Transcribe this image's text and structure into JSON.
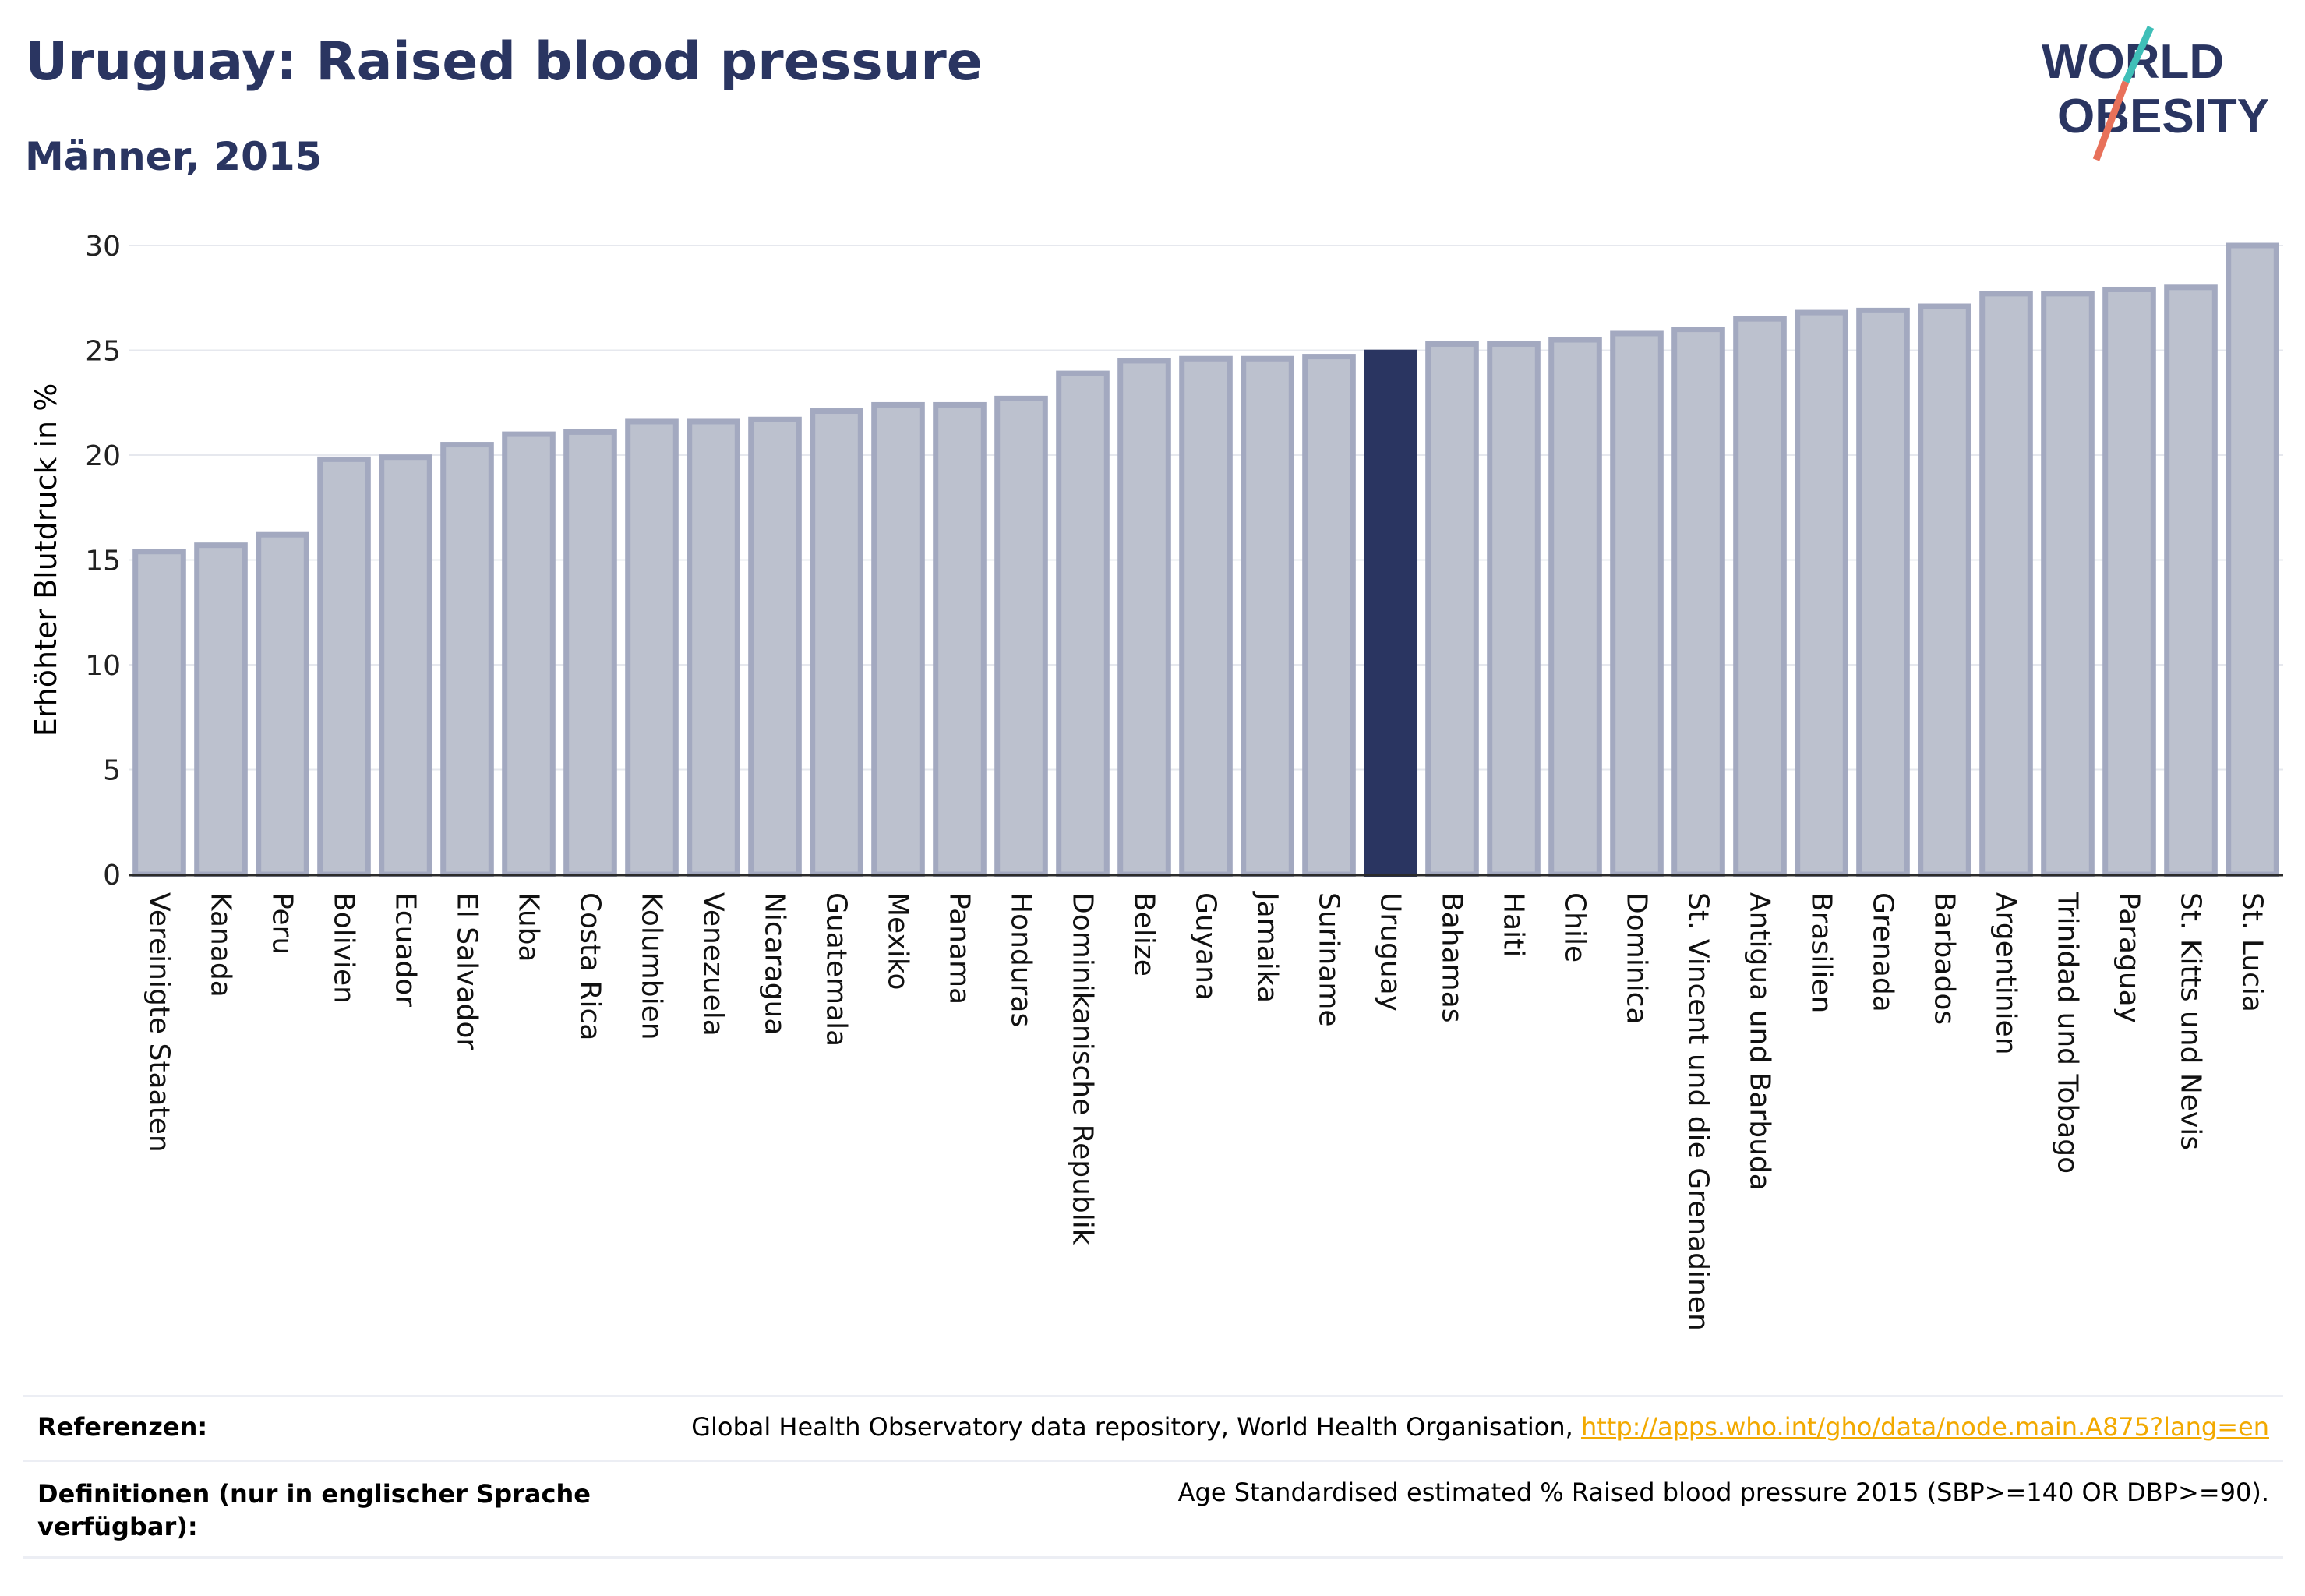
{
  "header": {
    "title": "Uruguay: Raised blood pressure",
    "subtitle": "Männer, 2015",
    "logo": {
      "line1": "WORLD",
      "line2": "OBESITY"
    }
  },
  "chart_data": {
    "type": "bar",
    "ylabel": "Erhöhter Blutdruck in %",
    "ylim": [
      0,
      30
    ],
    "yticks": [
      0,
      5,
      10,
      15,
      20,
      25,
      30
    ],
    "grid": true,
    "highlight": "Uruguay",
    "colors": {
      "bar": "#bcc1ce",
      "bar_border": "#a3a9c0",
      "highlight": "#2a3561"
    },
    "categories": [
      "Vereinigte Staaten",
      "Kanada",
      "Peru",
      "Bolivien",
      "Ecuador",
      "El Salvador",
      "Kuba",
      "Costa Rica",
      "Kolumbien",
      "Venezuela",
      "Nicaragua",
      "Guatemala",
      "Mexiko",
      "Panama",
      "Honduras",
      "Dominikanische Republik",
      "Belize",
      "Guyana",
      "Jamaika",
      "Suriname",
      "Uruguay",
      "Bahamas",
      "Haiti",
      "Chile",
      "Dominica",
      "St. Vincent und die Grenadinen",
      "Antigua und Barbuda",
      "Brasilien",
      "Grenada",
      "Barbados",
      "Argentinien",
      "Trinidad und Tobago",
      "Paraguay",
      "St. Kitts und Nevis",
      "St. Lucia"
    ],
    "values": [
      15.4,
      15.7,
      16.2,
      19.8,
      19.9,
      20.5,
      21.0,
      21.1,
      21.6,
      21.6,
      21.7,
      22.1,
      22.4,
      22.4,
      22.7,
      23.9,
      24.5,
      24.6,
      24.6,
      24.7,
      24.9,
      25.3,
      25.3,
      25.5,
      25.8,
      26.0,
      26.5,
      26.8,
      26.9,
      27.1,
      27.7,
      27.7,
      27.9,
      28.0,
      30.0
    ]
  },
  "footer": {
    "references_label": "Referenzen:",
    "references_text": "Global Health Observatory data repository, World Health Organisation,",
    "references_link": "http://apps.who.int/gho/data/node.main.A875?lang=en",
    "definitions_label": "Definitionen (nur in englischer Sprache verfügbar):",
    "definitions_text": "Age Standardised estimated % Raised blood pressure 2015 (SBP>=140 OR DBP>=90)."
  }
}
